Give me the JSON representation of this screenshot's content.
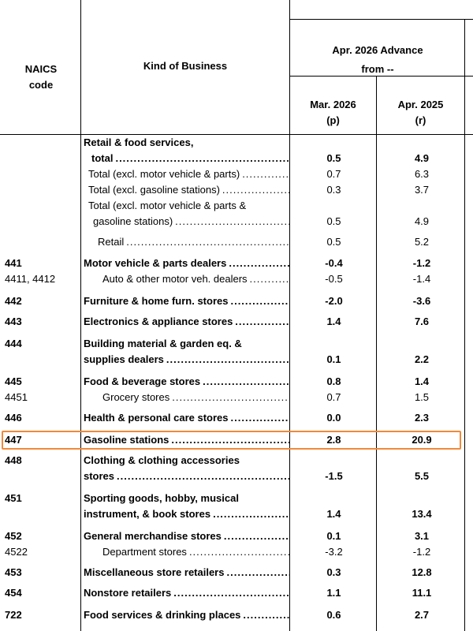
{
  "header": {
    "col_code": [
      "NAICS",
      "code"
    ],
    "col_kind": "Kind of Business",
    "group": [
      "Apr. 2026 Advance",
      "from --"
    ],
    "sub1": [
      "Mar. 2026",
      "(p)"
    ],
    "sub2": [
      "Apr. 2025",
      "(r)"
    ]
  },
  "rows": [
    {
      "code": "",
      "lines": [
        "Retail & food services,",
        "total"
      ],
      "v1": "0.5",
      "v2": "4.9",
      "bold": true
    },
    {
      "code": "",
      "lines": [
        "Total (excl. motor vehicle & parts)"
      ],
      "v1": "0.7",
      "v2": "6.3",
      "bold": false
    },
    {
      "code": "",
      "lines": [
        "Total (excl. gasoline stations)"
      ],
      "v1": "0.3",
      "v2": "3.7",
      "bold": false
    },
    {
      "code": "",
      "lines": [
        "Total (excl. motor vehicle & parts &",
        "gasoline stations)"
      ],
      "v1": "0.5",
      "v2": "4.9",
      "bold": false
    },
    {
      "code": "",
      "lines": [
        "Retail"
      ],
      "v1": "0.5",
      "v2": "5.2",
      "bold": false
    },
    {
      "code": "441",
      "lines": [
        "Motor vehicle & parts dealers"
      ],
      "v1": "-0.4",
      "v2": "-1.2",
      "bold": true
    },
    {
      "code": "4411, 4412",
      "lines": [
        "Auto & other motor veh. dealers"
      ],
      "v1": "-0.5",
      "v2": "-1.4",
      "bold": false
    },
    {
      "code": "442",
      "lines": [
        "Furniture & home furn. stores"
      ],
      "v1": "-2.0",
      "v2": "-3.6",
      "bold": true
    },
    {
      "code": "443",
      "lines": [
        "Electronics & appliance stores"
      ],
      "v1": "1.4",
      "v2": "7.6",
      "bold": true
    },
    {
      "code": "444",
      "lines": [
        "Building material & garden eq. &",
        "supplies dealers"
      ],
      "v1": "0.1",
      "v2": "2.2",
      "bold": true
    },
    {
      "code": "445",
      "lines": [
        "Food & beverage stores"
      ],
      "v1": "0.8",
      "v2": "1.4",
      "bold": true
    },
    {
      "code": "4451",
      "lines": [
        "Grocery stores"
      ],
      "v1": "0.7",
      "v2": "1.5",
      "bold": false
    },
    {
      "code": "446",
      "lines": [
        "Health & personal care stores"
      ],
      "v1": "0.0",
      "v2": "2.3",
      "bold": true
    },
    {
      "code": "447",
      "lines": [
        "Gasoline stations"
      ],
      "v1": "2.8",
      "v2": "20.9",
      "bold": true
    },
    {
      "code": "448",
      "lines": [
        "Clothing & clothing accessories",
        "stores"
      ],
      "v1": "-1.5",
      "v2": "5.5",
      "bold": true
    },
    {
      "code": "451",
      "lines": [
        "Sporting goods, hobby, musical",
        "instrument, & book stores"
      ],
      "v1": "1.4",
      "v2": "13.4",
      "bold": true
    },
    {
      "code": "452",
      "lines": [
        "General merchandise stores"
      ],
      "v1": "0.1",
      "v2": "3.1",
      "bold": true
    },
    {
      "code": "4522",
      "lines": [
        "Department stores"
      ],
      "v1": "-3.2",
      "v2": "-1.2",
      "bold": false
    },
    {
      "code": "453",
      "lines": [
        "Miscellaneous store retailers"
      ],
      "v1": "0.3",
      "v2": "12.8",
      "bold": true
    },
    {
      "code": "454",
      "lines": [
        "Nonstore retailers"
      ],
      "v1": "1.1",
      "v2": "11.1",
      "bold": true
    },
    {
      "code": "722",
      "lines": [
        "Food services & drinking places"
      ],
      "v1": "0.6",
      "v2": "2.7",
      "bold": true
    }
  ]
}
